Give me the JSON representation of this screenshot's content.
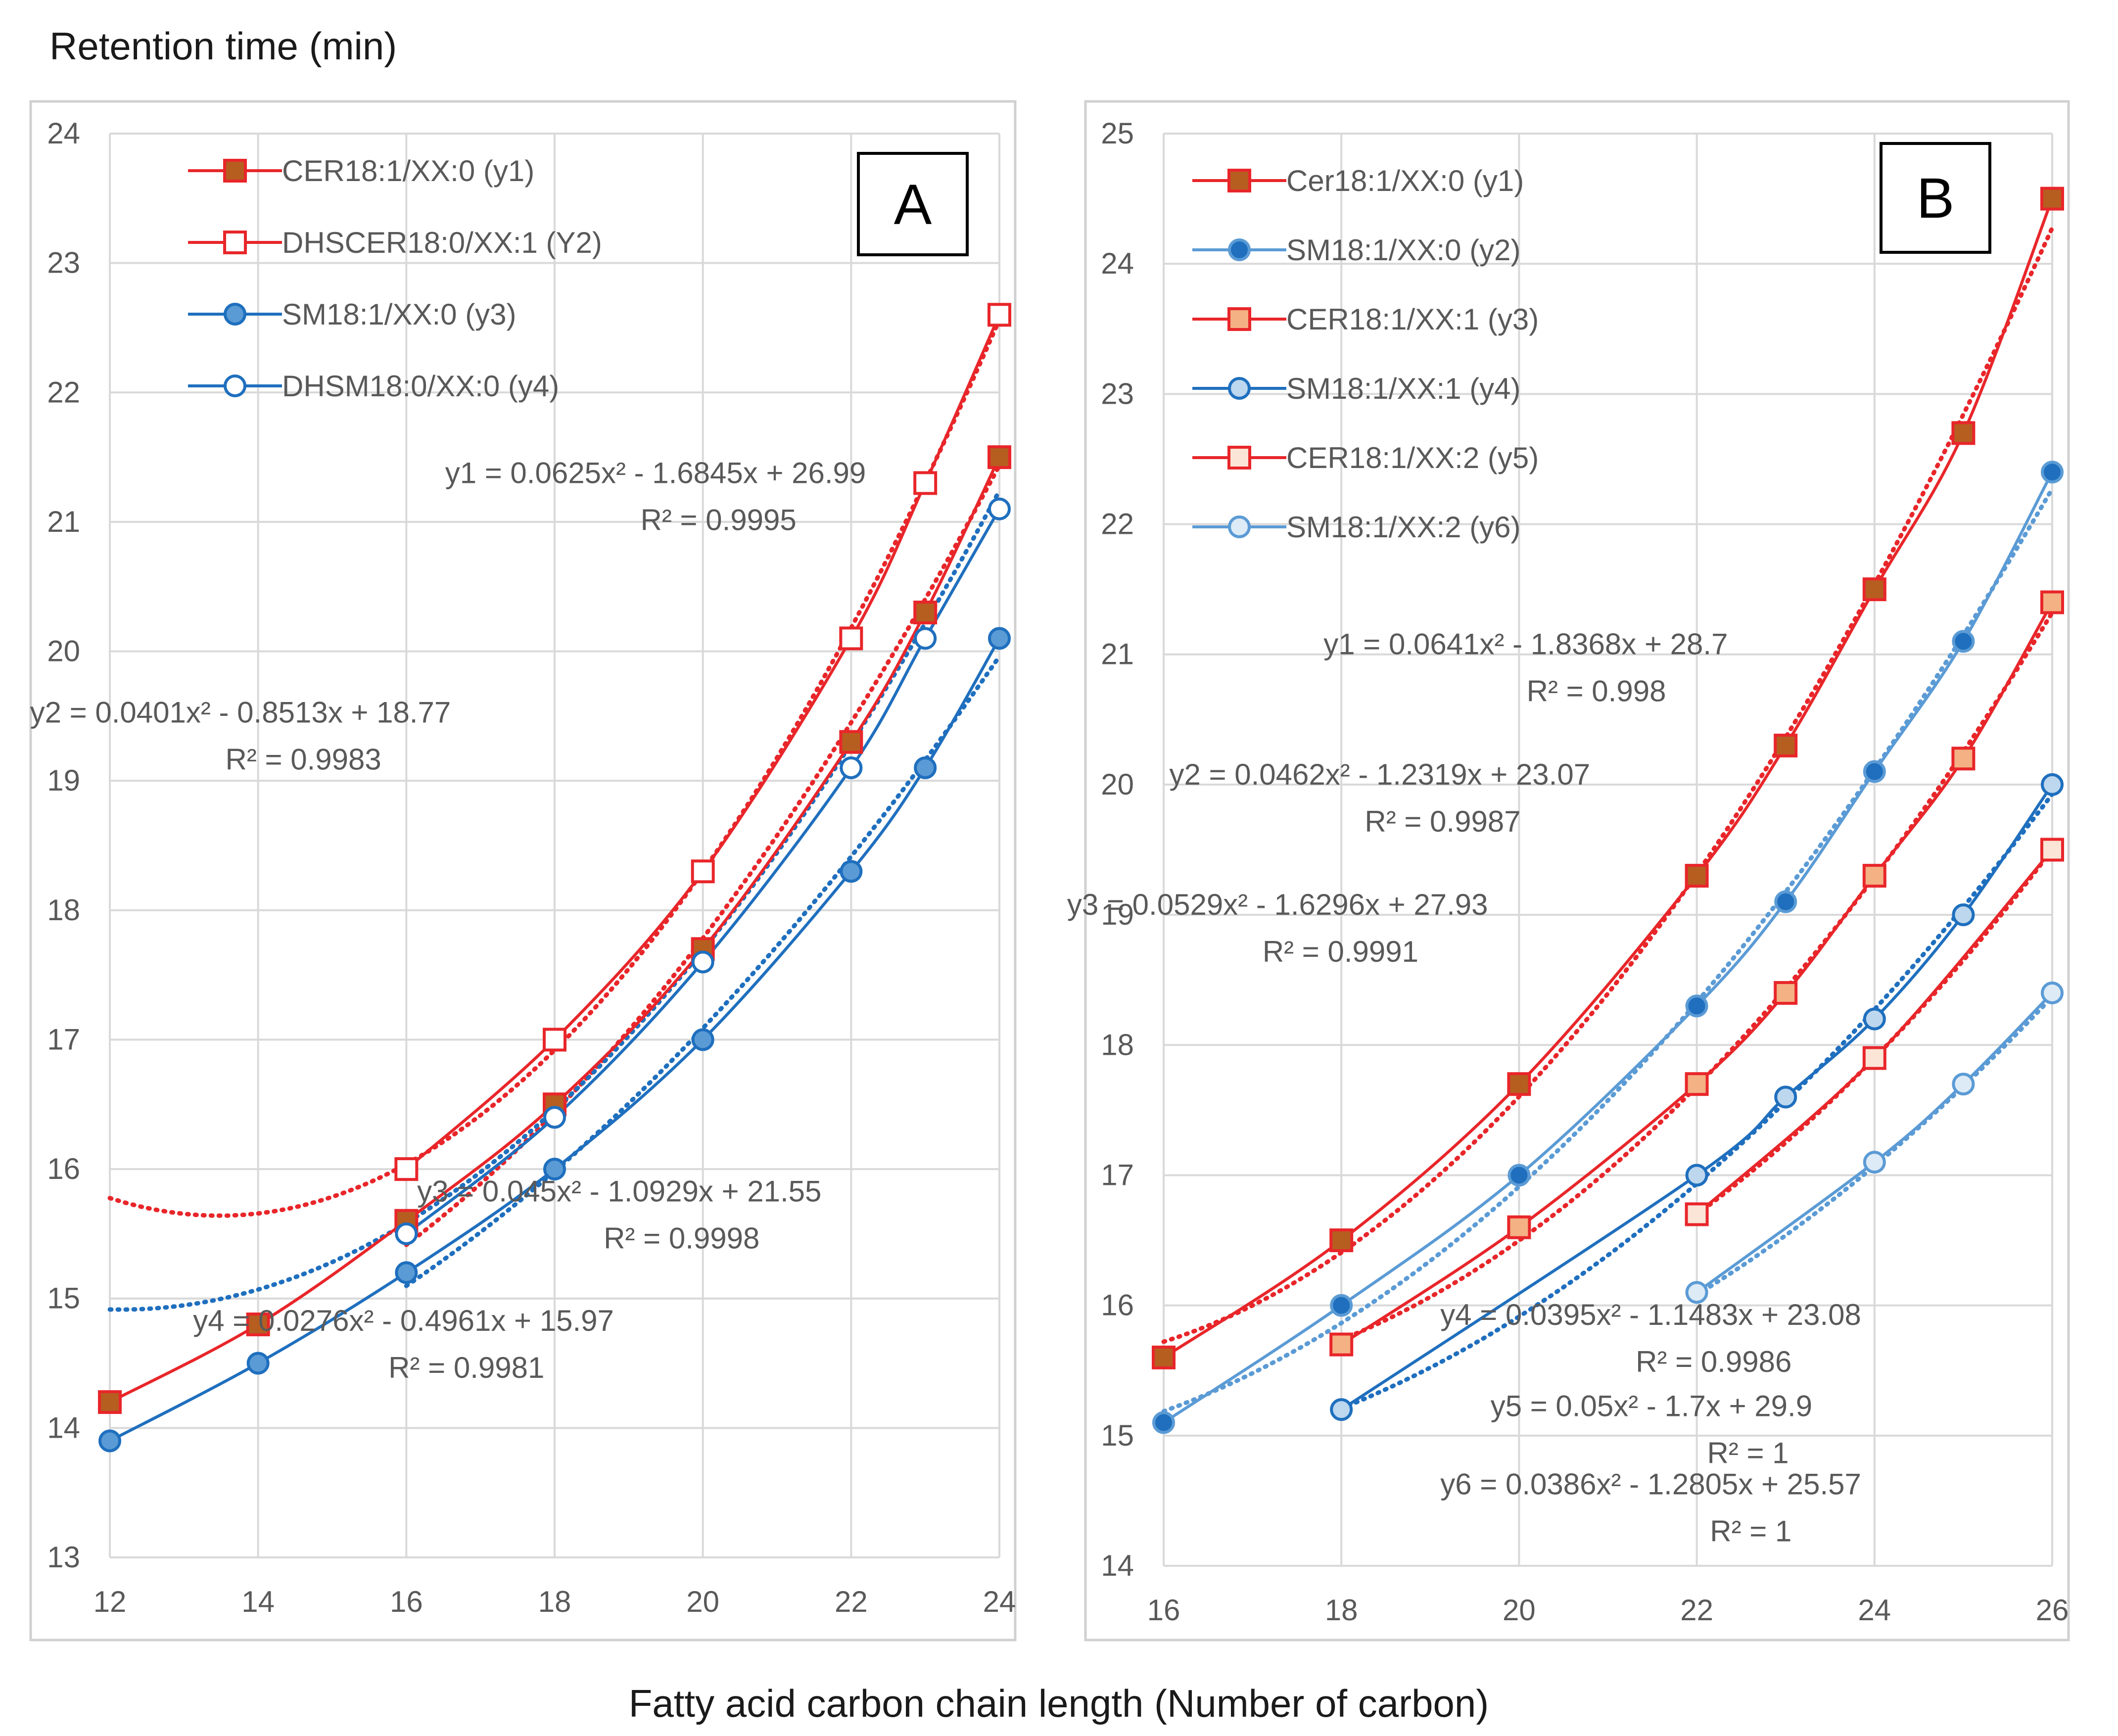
{
  "figure": {
    "ylabel": "Retention time (min)",
    "xlabel": "Fatty acid carbon chain length (Number of carbon)"
  },
  "colors": {
    "red": "#e8262a",
    "darkblue": "#1f6fbe",
    "lightblue": "#5b9bd5",
    "brownfill": "#b65e20",
    "peach": "#f4b183",
    "paleblue": "#bdd7ee",
    "grid": "#d9d9d9",
    "text": "#595959",
    "green": "#70ad47"
  },
  "chart_data": [
    {
      "type": "line",
      "panel_label": "A",
      "xlim": [
        12,
        24
      ],
      "ylim": [
        13,
        24
      ],
      "xticks": [
        12,
        14,
        16,
        18,
        20,
        22,
        24
      ],
      "yticks": [
        13,
        14,
        15,
        16,
        17,
        18,
        19,
        20,
        21,
        22,
        23,
        24
      ],
      "grid": true,
      "legend_position": "top-left",
      "series": [
        {
          "name": "CER18:1/XX:0 (y1)",
          "color": "red",
          "marker": "square",
          "fill": "brownfill",
          "x": [
            12,
            14,
            16,
            18,
            20,
            22,
            23,
            24
          ],
          "y": [
            14.2,
            14.8,
            15.6,
            16.5,
            17.7,
            19.3,
            20.3,
            21.5
          ],
          "trend": {
            "a": 0.0625,
            "b": -1.6845,
            "c": 26.99,
            "x_range": [
              12,
              24
            ]
          }
        },
        {
          "name": "DHSCER18:0/XX:1 (Y2)",
          "color": "red",
          "marker": "square",
          "fill": "white",
          "x": [
            16,
            18,
            20,
            22,
            23,
            24
          ],
          "y": [
            16.0,
            17.0,
            18.3,
            20.1,
            21.3,
            22.6
          ],
          "trend": {
            "a": 0.0401,
            "b": -0.8513,
            "c": 18.77,
            "x_range": [
              16,
              24
            ]
          }
        },
        {
          "name": "SM18:1/XX:0 (y3)",
          "color": "darkblue",
          "marker": "circle",
          "fill": "lightblue",
          "x": [
            12,
            14,
            16,
            18,
            20,
            22,
            23,
            24
          ],
          "y": [
            13.9,
            14.5,
            15.2,
            16.0,
            17.0,
            18.3,
            19.1,
            20.1
          ],
          "trend": {
            "a": 0.045,
            "b": -1.0929,
            "c": 21.55,
            "x_range": [
              12,
              24
            ]
          }
        },
        {
          "name": "DHSM18:0/XX:0 (y4)",
          "color": "darkblue",
          "marker": "circle",
          "fill": "white",
          "x": [
            16,
            18,
            20,
            22,
            23,
            24
          ],
          "y": [
            15.5,
            16.4,
            17.6,
            19.1,
            20.1,
            21.1
          ],
          "trend": {
            "a": 0.0276,
            "b": -0.4961,
            "c": 15.97,
            "x_range": [
              16,
              24
            ]
          }
        }
      ],
      "equations": [
        {
          "eq": "y1 = 0.0625x² - 1.6845x + 26.99",
          "r2": "R² = 0.9995",
          "at": [
            22.2,
            21.3
          ]
        },
        {
          "eq": "y2 = 0.0401x² - 0.8513x + 18.77",
          "r2": "R² = 0.9983",
          "at": [
            16.6,
            19.45
          ]
        },
        {
          "eq": "y3 = 0.045x² - 1.0929x + 21.55",
          "r2": "R² = 0.9998",
          "at": [
            21.6,
            15.75
          ]
        },
        {
          "eq": "y4 = 0.0276x² - 0.4961x + 15.97",
          "r2": "R² = 0.9981",
          "at": [
            18.8,
            14.75
          ]
        }
      ]
    },
    {
      "type": "line",
      "panel_label": "B",
      "xlim": [
        16,
        26
      ],
      "ylim": [
        14,
        25
      ],
      "xticks": [
        16,
        18,
        20,
        22,
        24,
        26
      ],
      "yticks": [
        14,
        15,
        16,
        17,
        18,
        19,
        20,
        21,
        22,
        23,
        24,
        25
      ],
      "grid": true,
      "legend_position": "top-left",
      "series": [
        {
          "name": "Cer18:1/XX:0 (y1)",
          "color": "red",
          "marker": "square",
          "fill": "brownfill",
          "x": [
            16,
            18,
            20,
            22,
            23,
            24,
            25,
            26
          ],
          "y": [
            15.6,
            16.5,
            17.7,
            19.3,
            20.3,
            21.5,
            22.7,
            24.5
          ],
          "trend": {
            "a": 0.0641,
            "b": -1.8368,
            "c": 28.7,
            "x_range": [
              16,
              26
            ]
          }
        },
        {
          "name": "SM18:1/XX:0 (y2)",
          "color": "lightblue",
          "marker": "circle",
          "fill": "darkblue",
          "x": [
            16,
            18,
            20,
            22,
            23,
            24,
            25,
            26
          ],
          "y": [
            15.1,
            16.0,
            17.0,
            18.3,
            19.1,
            20.1,
            21.1,
            22.4
          ],
          "trend": {
            "a": 0.0462,
            "b": -1.2319,
            "c": 23.07,
            "x_range": [
              16,
              26
            ]
          }
        },
        {
          "name": "CER18:1/XX:1 (y3)",
          "color": "red",
          "marker": "square",
          "fill": "peach",
          "x": [
            18,
            20,
            22,
            23,
            24,
            25,
            26
          ],
          "y": [
            15.7,
            16.6,
            17.7,
            18.4,
            19.3,
            20.2,
            21.4
          ],
          "trend": {
            "a": 0.0529,
            "b": -1.6296,
            "c": 27.93,
            "x_range": [
              18,
              26
            ]
          }
        },
        {
          "name": "SM18:1/XX:1 (y4)",
          "color": "darkblue",
          "marker": "circle",
          "fill": "paleblue",
          "x": [
            18,
            22,
            23,
            24,
            25,
            26
          ],
          "y": [
            15.2,
            17.0,
            17.6,
            18.2,
            19.0,
            20.0
          ],
          "trend": {
            "a": 0.0395,
            "b": -1.1483,
            "c": 23.08,
            "x_range": [
              18,
              26
            ]
          }
        },
        {
          "name": "CER18:1/XX:2 (y5)",
          "color": "red",
          "marker": "square",
          "fill": "#fbe5d6",
          "x": [
            22,
            24,
            26
          ],
          "y": [
            16.7,
            17.9,
            19.5
          ],
          "trend": {
            "a": 0.05,
            "b": -1.7,
            "c": 29.9,
            "x_range": [
              22,
              26
            ]
          }
        },
        {
          "name": "SM18:1/XX:2 (y6)",
          "color": "lightblue",
          "marker": "circle",
          "fill": "#ddebf7",
          "x": [
            22,
            24,
            25,
            26
          ],
          "y": [
            16.1,
            17.1,
            17.7,
            18.4
          ],
          "trend": {
            "a": 0.0386,
            "b": -1.2805,
            "c": 25.57,
            "x_range": [
              22,
              26
            ]
          }
        }
      ],
      "equations": [
        {
          "eq": "y1 = 0.0641x² - 1.8368x + 28.7",
          "r2": "R² = 0.998",
          "at": [
            22.35,
            21.0
          ]
        },
        {
          "eq": "y2 = 0.0462x² - 1.2319x + 23.07",
          "r2": "R² = 0.9987",
          "at": [
            20.8,
            20.0
          ]
        },
        {
          "eq": "y3 = 0.0529x² - 1.6296x + 27.93",
          "r2": "R² = 0.9991",
          "at": [
            19.65,
            19.0
          ]
        },
        {
          "eq": "y4 = 0.0395x² - 1.1483x + 23.08",
          "r2": "R² = 0.9986",
          "at": [
            23.85,
            15.85
          ]
        },
        {
          "eq": "y5 = 0.05x² - 1.7x + 29.9",
          "r2": "R² = 1",
          "at": [
            23.3,
            15.15
          ]
        },
        {
          "eq": "y6 = 0.0386x² - 1.2805x + 25.57",
          "r2": "R² = 1",
          "at": [
            23.85,
            14.55
          ]
        }
      ]
    }
  ]
}
